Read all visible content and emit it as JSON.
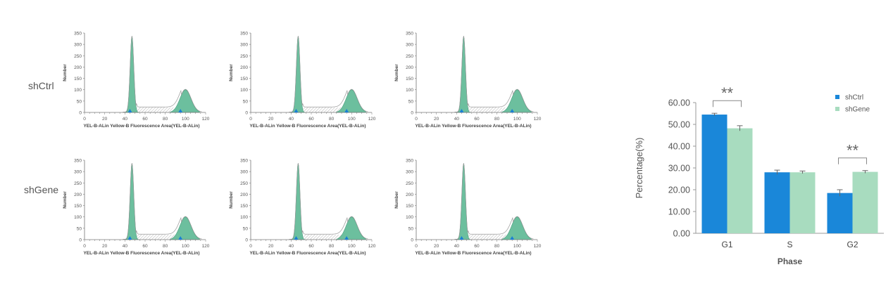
{
  "row_labels": [
    "shCtrl",
    "shGene"
  ],
  "chart_data": [
    {
      "type": "area",
      "panels": [
        {
          "row": "shCtrl",
          "replicate": 1
        },
        {
          "row": "shCtrl",
          "replicate": 2
        },
        {
          "row": "shCtrl",
          "replicate": 3
        },
        {
          "row": "shGene",
          "replicate": 1
        },
        {
          "row": "shGene",
          "replicate": 2
        },
        {
          "row": "shGene",
          "replicate": 3
        }
      ],
      "xlabel": "YEL-B-ALin Yellow-B Fluorescence Area(YEL-B-ALin)",
      "ylabel": "Number",
      "xlim": [
        0,
        120
      ],
      "ylim": [
        0,
        350
      ],
      "xticks": [
        0,
        20,
        40,
        60,
        80,
        100,
        120
      ],
      "yticks": [
        0,
        50,
        100,
        150,
        200,
        250,
        300,
        350
      ],
      "g1_peak": {
        "x": 47,
        "y": 335
      },
      "g2_peak": {
        "x": 100,
        "y": 100
      },
      "marker_x": [
        45,
        95
      ],
      "colors": {
        "fill": "#6cbf9e",
        "outline": "#999999",
        "marker": "#1a7fd4"
      }
    },
    {
      "type": "bar",
      "title": "",
      "xlabel": "Phase",
      "ylabel": "Percentage(%)",
      "categories": [
        "G1",
        "S",
        "G2"
      ],
      "series": [
        {
          "name": "shCtrl",
          "values": [
            54.5,
            28.0,
            18.5
          ],
          "errors": [
            0.6,
            1.0,
            1.5
          ],
          "color": "#1a87d9"
        },
        {
          "name": "shGene",
          "values": [
            48.2,
            28.0,
            28.2
          ],
          "errors": [
            1.2,
            0.6,
            0.6
          ],
          "color": "#a8dcbf"
        }
      ],
      "ylim": [
        0,
        60
      ],
      "yticks": [
        "0.00",
        "10.00",
        "20.00",
        "30.00",
        "40.00",
        "50.00",
        "60.00"
      ],
      "significance": [
        {
          "category": "G1",
          "label": "**"
        },
        {
          "category": "G2",
          "label": "**"
        }
      ],
      "legend": "top-right",
      "grid": false
    }
  ]
}
